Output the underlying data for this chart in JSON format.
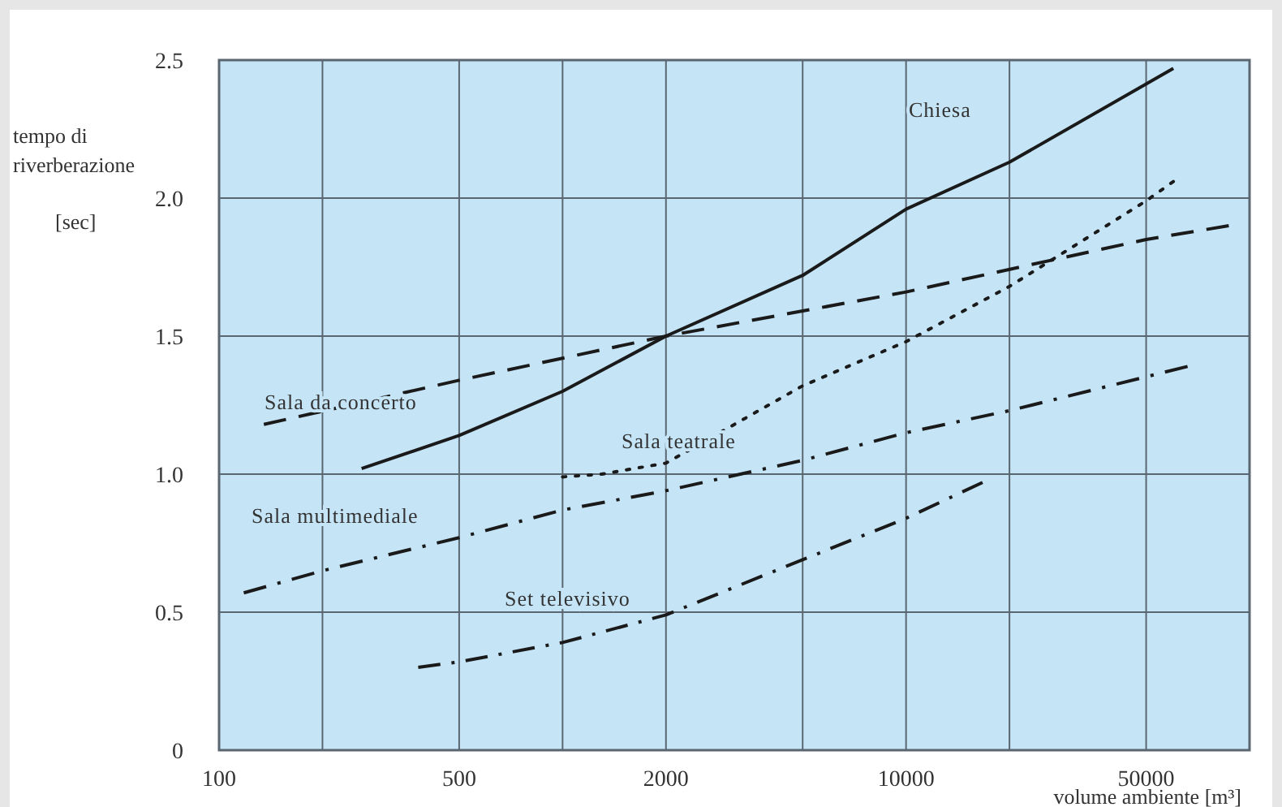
{
  "chart_data": {
    "type": "line",
    "xlabel": "volume ambiente [m³]",
    "ylabel": "tempo di riverberazione [sec]",
    "log": "x",
    "xlim": [
      100,
      100000
    ],
    "xticks": [
      100,
      {
        "value": 200,
        "label": null
      },
      500,
      {
        "value": 1000,
        "label": null
      },
      2000,
      {
        "value": 5000,
        "label": null
      },
      10000,
      {
        "value": 20000,
        "label": null
      },
      50000
    ],
    "ylim": [
      0,
      2.5
    ],
    "yticks": [
      0,
      0.5,
      {
        "value": 1,
        "label": "1.0"
      },
      1.5,
      {
        "value": 2,
        "label": "2.0"
      },
      2.5
    ],
    "grid": true,
    "marker": "none",
    "series": [
      {
        "name": "Chiesa",
        "color": "#1a1a1a",
        "line_style": "solid",
        "x": [
          260,
          500,
          1000,
          2000,
          5000,
          10000,
          20000,
          60000
        ],
        "values": [
          1.02,
          1.14,
          1.3,
          1.5,
          1.72,
          1.96,
          2.13,
          2.47
        ]
      },
      {
        "name": "Sala da concerto",
        "color": "#1a1a1a",
        "line_style": "dashed",
        "x": [
          135,
          500,
          2000,
          10000,
          50000,
          87000
        ],
        "values": [
          1.18,
          1.34,
          1.5,
          1.66,
          1.85,
          1.9
        ]
      },
      {
        "name": "Sala teatrale",
        "color": "#1a1a1a",
        "line_style": "dotted",
        "x": [
          1000,
          1300,
          2000,
          5000,
          10000,
          20000,
          50000,
          60000
        ],
        "values": [
          0.99,
          1.0,
          1.04,
          1.32,
          1.48,
          1.68,
          1.99,
          2.06
        ]
      },
      {
        "name": "Sala multimediale",
        "color": "#1a1a1a",
        "line_style": "dashdot",
        "x": [
          118,
          200,
          500,
          1000,
          2000,
          5000,
          10000,
          20000,
          66000
        ],
        "values": [
          0.57,
          0.65,
          0.77,
          0.87,
          0.94,
          1.05,
          1.15,
          1.23,
          1.39
        ]
      },
      {
        "name": "Set televisivo",
        "color": "#1a1a1a",
        "line_style": "dashdot",
        "x": [
          380,
          500,
          1000,
          2000,
          5000,
          10000,
          16700
        ],
        "values": [
          0.3,
          0.32,
          0.39,
          0.49,
          0.69,
          0.84,
          0.97
        ]
      }
    ]
  }
}
